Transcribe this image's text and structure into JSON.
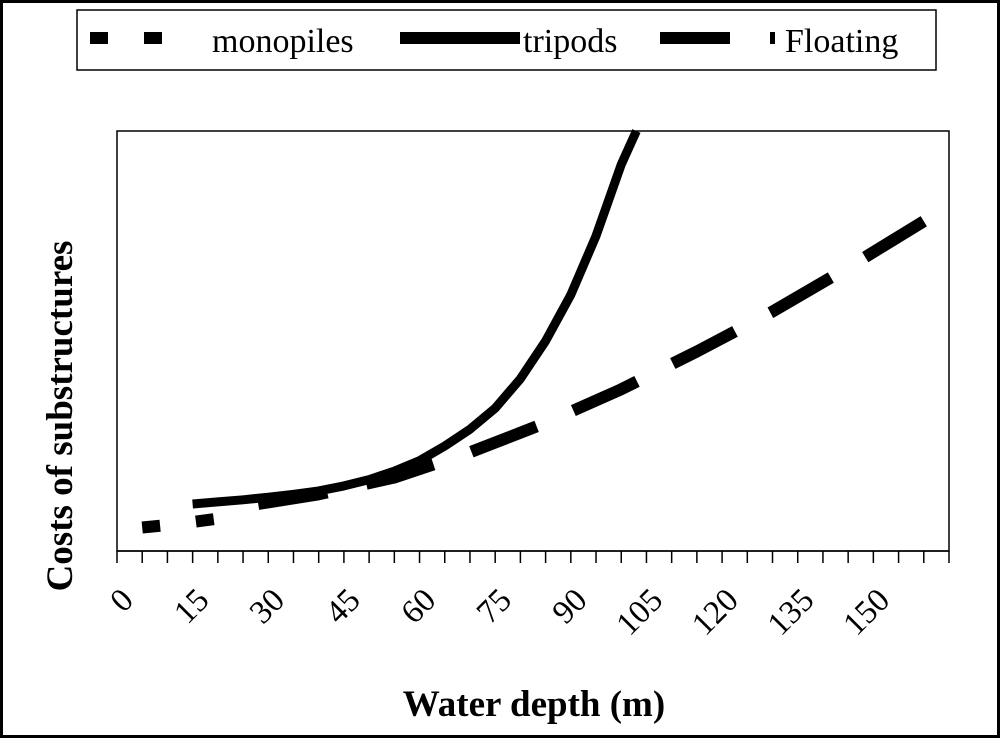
{
  "chart_data": {
    "type": "line",
    "title": "",
    "xlabel": "Water depth (m)",
    "ylabel": "Costs of substructures",
    "xlim": [
      0,
      165
    ],
    "ylim": [
      0,
      100
    ],
    "x_ticks": [
      0,
      15,
      30,
      45,
      60,
      75,
      90,
      105,
      120,
      135,
      150
    ],
    "legend_position": "top",
    "series": [
      {
        "name": "monopiles",
        "style": "short-dash",
        "x": [
          5,
          10,
          15,
          20
        ],
        "y": [
          5.6,
          6.2,
          6.9,
          7.7
        ]
      },
      {
        "name": "tripods",
        "style": "solid",
        "x": [
          15,
          20,
          25,
          30,
          35,
          40,
          45,
          50,
          55,
          60,
          65,
          70,
          75,
          80,
          85,
          90,
          95,
          100,
          103
        ],
        "y": [
          11.2,
          11.7,
          12.2,
          12.8,
          13.5,
          14.3,
          15.5,
          17.0,
          19.0,
          21.5,
          25.0,
          29.0,
          34.0,
          41.0,
          50.0,
          61.0,
          75.0,
          92.0,
          100.0
        ]
      },
      {
        "name": "Floating",
        "style": "long-dash",
        "x": [
          28,
          40,
          55,
          70,
          85,
          100,
          115,
          130,
          145,
          160
        ],
        "y": [
          11.2,
          13.5,
          17.5,
          23.5,
          30.5,
          38.5,
          47.5,
          57.0,
          67.5,
          78.5
        ]
      }
    ]
  },
  "legend": {
    "items": [
      {
        "label": "monopiles"
      },
      {
        "label": "tripods"
      },
      {
        "label": "Floating"
      }
    ]
  }
}
